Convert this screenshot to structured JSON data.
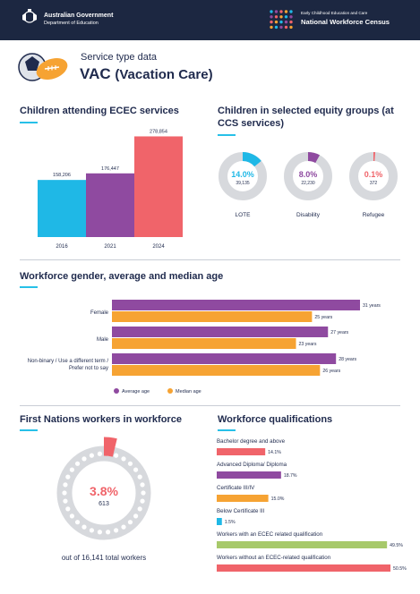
{
  "header": {
    "gov_name": "Australian Government",
    "gov_dept": "Department of Education",
    "census_small": "Early Childhood Education and Care",
    "census_big": "National Workforce Census"
  },
  "page": {
    "subtitle": "Service type data",
    "title_main": "VAC",
    "title_paren": "(Vacation Care)"
  },
  "sections": {
    "attending": "Children attending ECEC services",
    "equity": "Children in selected equity groups (at CCS services)",
    "gender": "Workforce gender, average and median age",
    "first_nations": "First Nations workers in workforce",
    "qualifications": "Workforce qualifications"
  },
  "colors": {
    "cyan": "#1fb8e6",
    "purple": "#8f4aa0",
    "coral": "#f0646a",
    "orange": "#f6a333",
    "green": "#a7c96a",
    "navy": "#1f2a4d"
  },
  "chart_data": [
    {
      "type": "bar",
      "title": "Children attending ECEC services",
      "categories": [
        "2016",
        "2021",
        "2024"
      ],
      "values": [
        158206,
        176447,
        278854
      ],
      "value_labels": [
        "158,206",
        "176,447",
        "278,854"
      ],
      "colors": [
        "#1fb8e6",
        "#8f4aa0",
        "#f0646a"
      ],
      "ylim": [
        0,
        280000
      ]
    },
    {
      "type": "pie",
      "title": "Children in selected equity groups (at CCS services)",
      "items": [
        {
          "label": "LOTE",
          "percent": 14.0,
          "percent_label": "14.0%",
          "count": "39,135",
          "color": "#1fb8e6"
        },
        {
          "label": "Disability",
          "percent": 8.0,
          "percent_label": "8.0%",
          "count": "22,230",
          "color": "#8f4aa0"
        },
        {
          "label": "Refugee",
          "percent": 0.1,
          "percent_label": "0.1%",
          "count": "372",
          "color": "#f0646a"
        }
      ]
    },
    {
      "type": "bar",
      "title": "Workforce gender, average and median age",
      "categories": [
        "Female",
        "Male",
        "Non-binary / Use a different term / Prefer not to say"
      ],
      "series": [
        {
          "name": "Average age",
          "values": [
            31,
            27,
            28
          ],
          "labels": [
            "31 years",
            "27 years",
            "28 years"
          ],
          "color": "#8f4aa0"
        },
        {
          "name": "Median age",
          "values": [
            25,
            23,
            26
          ],
          "labels": [
            "25 years",
            "23 years",
            "26 years"
          ],
          "color": "#f6a333"
        }
      ],
      "xlim": [
        0,
        31
      ]
    },
    {
      "type": "pie",
      "title": "First Nations workers in workforce",
      "percent": 3.8,
      "percent_label": "3.8%",
      "count": "613",
      "caption": "out of 16,141 total workers"
    },
    {
      "type": "bar",
      "title": "Workforce qualifications",
      "categories": [
        "Bachelor degree and above",
        "Advanced Diploma/ Diploma",
        "Certificate III/IV",
        "Below Certificate III",
        "Workers with an ECEC related qualification",
        "Workers without an ECEC-related qualification"
      ],
      "values": [
        14.1,
        18.7,
        15.0,
        1.5,
        49.5,
        50.5
      ],
      "value_labels": [
        "14.1%",
        "18.7%",
        "15.0%",
        "1.5%",
        "49.5%",
        "50.5%"
      ],
      "colors": [
        "#f0646a",
        "#8f4aa0",
        "#f6a333",
        "#1fb8e6",
        "#a7c96a",
        "#f0646a"
      ],
      "xlim": [
        0,
        50.5
      ]
    }
  ]
}
